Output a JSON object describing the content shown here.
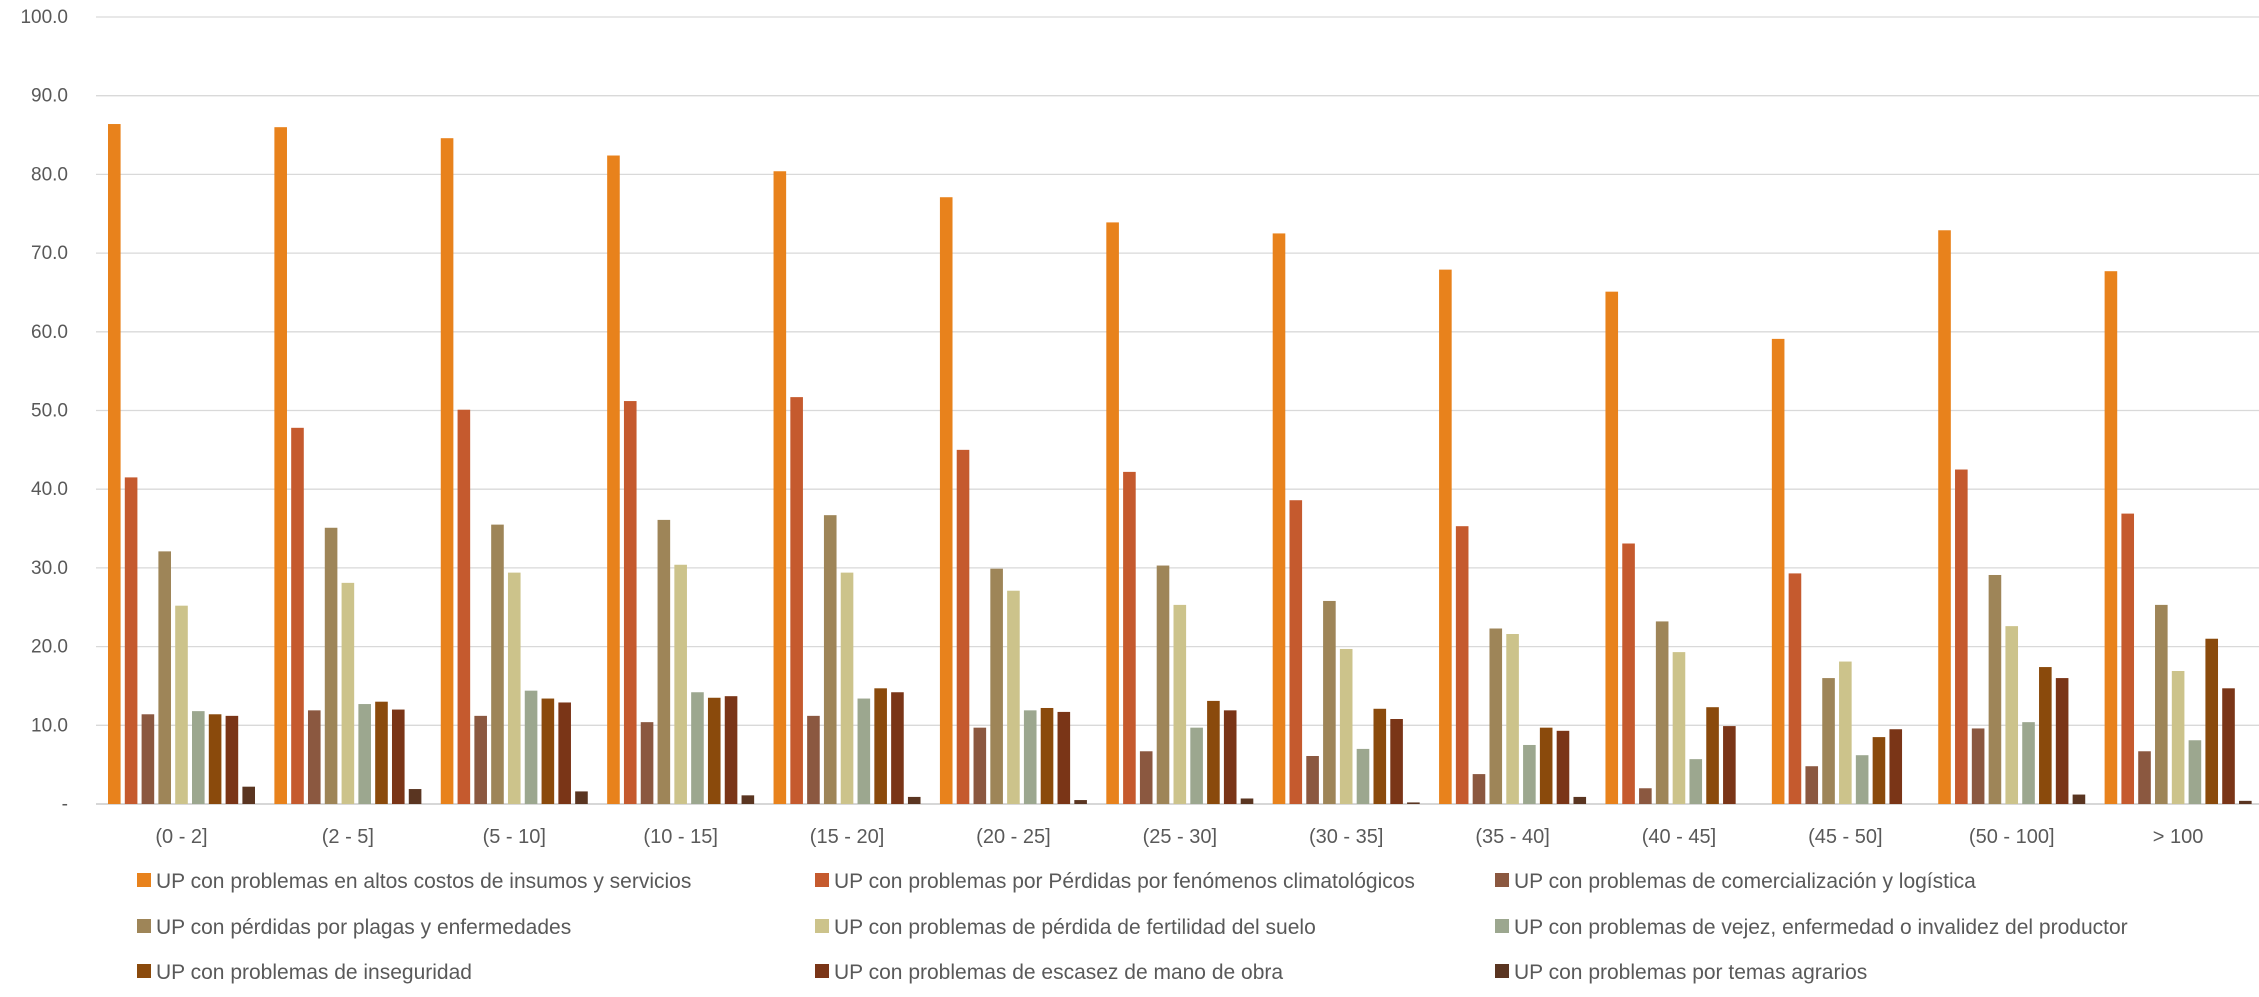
{
  "chart_data": {
    "type": "bar",
    "title": "",
    "xlabel": "",
    "ylabel": "",
    "ylim": [
      0,
      100
    ],
    "yticks": [
      "-",
      "10.0",
      "20.0",
      "30.0",
      "40.0",
      "50.0",
      "60.0",
      "70.0",
      "80.0",
      "90.0",
      "100.0"
    ],
    "grid": true,
    "legend_position": "bottom",
    "categories": [
      "(0 - 2]",
      "(2 - 5]",
      "(5 - 10]",
      "(10 - 15]",
      "(15 - 20]",
      "(20 - 25]",
      "(25 - 30]",
      "(30 - 35]",
      "(35 - 40]",
      "(40 - 45]",
      "(45 - 50]",
      "(50 - 100]",
      "> 100"
    ],
    "series": [
      {
        "name": "UP con problemas en altos costos de insumos y servicios",
        "color": "#E8821C",
        "values": [
          86.4,
          86.0,
          84.6,
          82.4,
          80.4,
          77.1,
          73.9,
          72.5,
          67.9,
          65.1,
          59.1,
          72.9,
          67.7
        ]
      },
      {
        "name": "UP con problemas por Pérdidas por fenómenos climatológicos",
        "color": "#C55A2E",
        "values": [
          41.5,
          47.8,
          50.1,
          51.2,
          51.7,
          45.0,
          42.2,
          38.6,
          35.3,
          33.1,
          29.3,
          42.5,
          36.9
        ]
      },
      {
        "name": "UP con problemas de comercialización y logística",
        "color": "#8B5840",
        "values": [
          11.4,
          11.9,
          11.2,
          10.4,
          11.2,
          9.7,
          6.7,
          6.1,
          3.8,
          2.0,
          4.8,
          9.6,
          6.7
        ]
      },
      {
        "name": "UP con pérdidas por plagas y enfermedades",
        "color": "#9E8558",
        "values": [
          32.1,
          35.1,
          35.5,
          36.1,
          36.7,
          29.9,
          30.3,
          25.8,
          22.3,
          23.2,
          16.0,
          29.1,
          25.3
        ]
      },
      {
        "name": "UP con problemas de pérdida de fertilidad del suelo",
        "color": "#CCC38B",
        "values": [
          25.2,
          28.1,
          29.4,
          30.4,
          29.4,
          27.1,
          25.3,
          19.7,
          21.6,
          19.3,
          18.1,
          22.6,
          16.9
        ]
      },
      {
        "name": "UP con problemas de vejez, enfermedad o invalidez del productor",
        "color": "#9CA78F",
        "values": [
          11.8,
          12.7,
          14.4,
          14.2,
          13.4,
          11.9,
          9.7,
          7.0,
          7.5,
          5.7,
          6.2,
          10.4,
          8.1
        ]
      },
      {
        "name": "UP con problemas de inseguridad",
        "color": "#8A4A0C",
        "values": [
          11.4,
          13.0,
          13.4,
          13.5,
          14.7,
          12.2,
          13.1,
          12.1,
          9.7,
          12.3,
          8.5,
          17.4,
          21.0
        ]
      },
      {
        "name": "UP con problemas de escasez de mano de obra",
        "color": "#7A3517",
        "values": [
          11.2,
          12.0,
          12.9,
          13.7,
          14.2,
          11.7,
          11.9,
          10.8,
          9.3,
          9.9,
          9.5,
          16.0,
          14.7
        ]
      },
      {
        "name": "UP con problemas por temas agrarios",
        "color": "#5A3521",
        "values": [
          2.2,
          1.9,
          1.6,
          1.1,
          0.9,
          0.5,
          0.7,
          0.2,
          0.9,
          0.0,
          0.0,
          1.2,
          0.4
        ]
      }
    ]
  }
}
